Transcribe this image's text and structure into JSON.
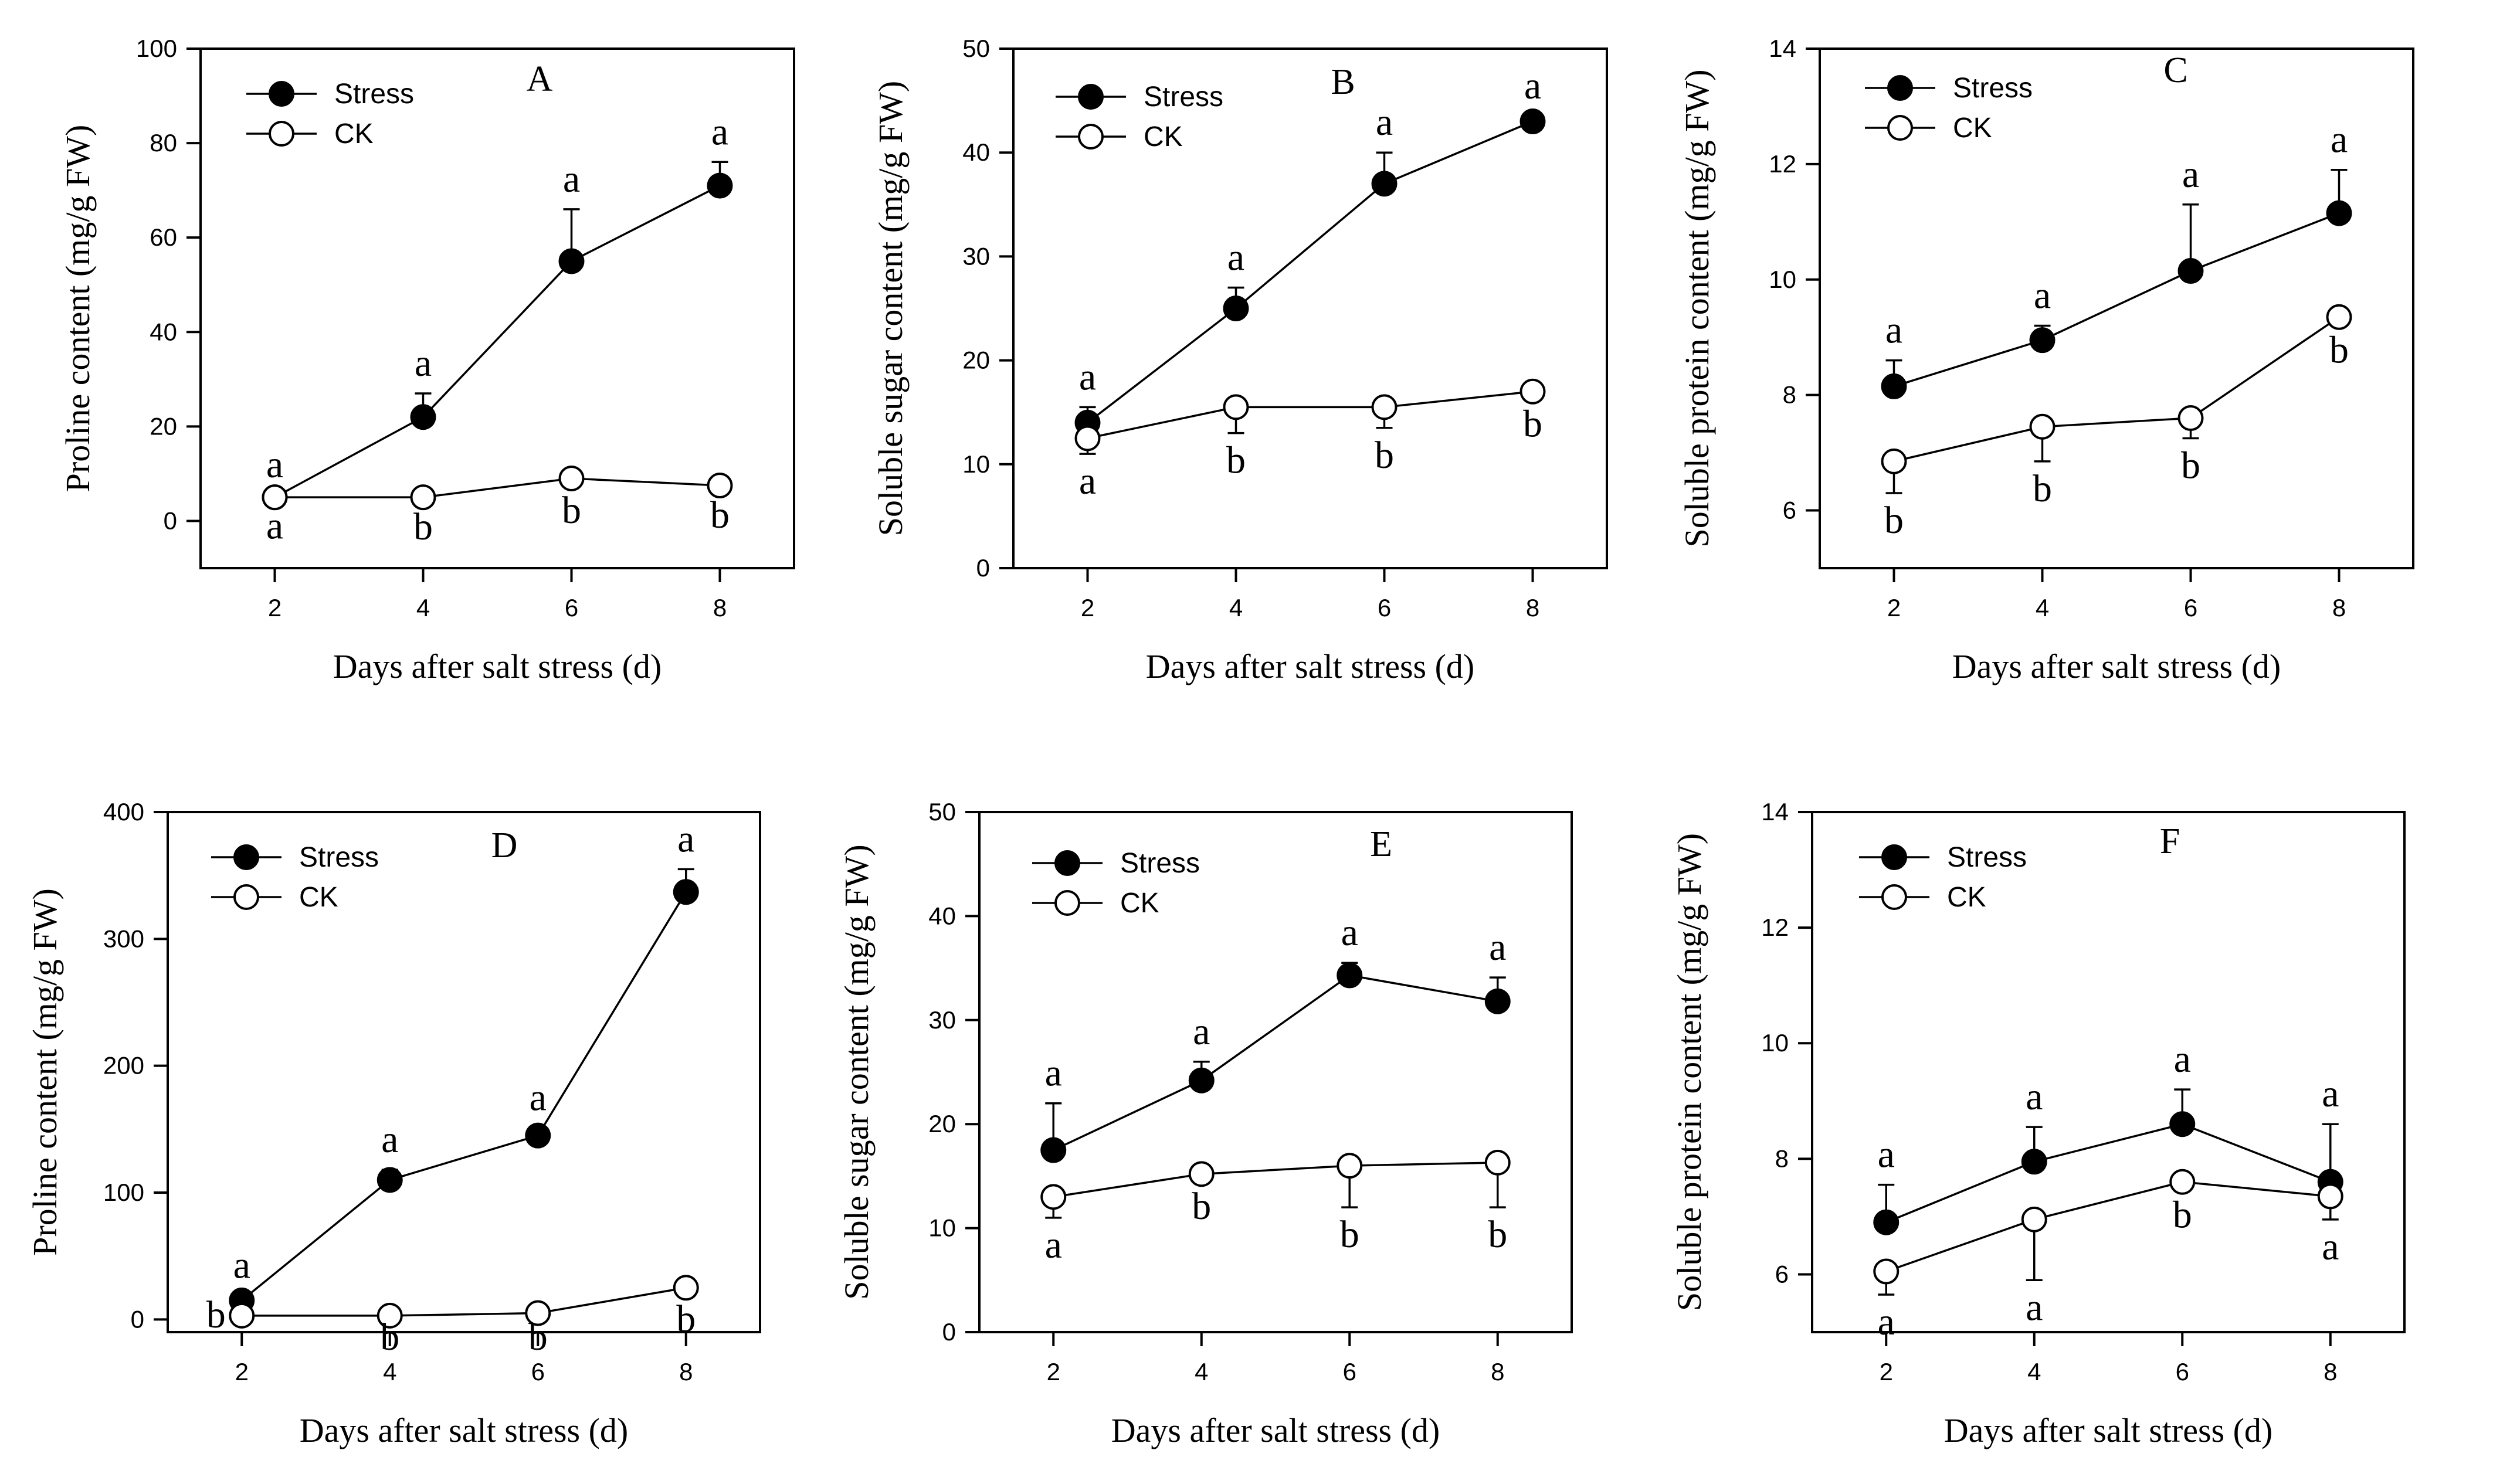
{
  "figure": {
    "xlabel": "Days after salt stress (d)",
    "legend": {
      "stress": "Stress",
      "ck": "CK"
    },
    "colors": {
      "stress": "#000000",
      "ck": "#ffffff",
      "axis": "#000000",
      "background": "#ffffff"
    }
  },
  "chart_data": [
    {
      "panel": "A",
      "type": "line",
      "xlabel": "Days after salt stress (d)",
      "ylabel": "Proline content (mg/g FW)",
      "x": [
        2,
        4,
        6,
        8
      ],
      "xlim": [
        1,
        9
      ],
      "ylim": [
        -10,
        100
      ],
      "yticks": [
        0,
        20,
        40,
        60,
        80,
        100
      ],
      "series": [
        {
          "name": "Stress",
          "values": [
            5,
            22,
            55,
            71
          ],
          "errors": [
            0.5,
            5,
            11,
            5
          ],
          "letters": [
            "a",
            "a",
            "a",
            "a"
          ]
        },
        {
          "name": "CK",
          "values": [
            5,
            5,
            9,
            7.5
          ],
          "errors": [
            0.3,
            0.5,
            1,
            0.5
          ],
          "letters": [
            "a",
            "b",
            "b",
            "b"
          ]
        }
      ]
    },
    {
      "panel": "B",
      "type": "line",
      "xlabel": "Days after salt stress (d)",
      "ylabel": "Soluble sugar content (mg/g FW)",
      "x": [
        2,
        4,
        6,
        8
      ],
      "xlim": [
        1,
        9
      ],
      "ylim": [
        0,
        50
      ],
      "yticks": [
        0,
        10,
        20,
        30,
        40,
        50
      ],
      "series": [
        {
          "name": "Stress",
          "values": [
            14,
            25,
            37,
            43
          ],
          "errors": [
            1.5,
            2,
            3,
            0.5
          ],
          "letters": [
            "a",
            "a",
            "a",
            "a"
          ]
        },
        {
          "name": "CK",
          "values": [
            12.5,
            15.5,
            15.5,
            17
          ],
          "errors": [
            1.5,
            2.5,
            2,
            0.5
          ],
          "letters": [
            "a",
            "b",
            "b",
            "b"
          ]
        }
      ]
    },
    {
      "panel": "C",
      "type": "line",
      "xlabel": "Days after salt stress (d)",
      "ylabel": "Soluble protein content  (mg/g FW)",
      "x": [
        2,
        4,
        6,
        8
      ],
      "xlim": [
        1,
        9
      ],
      "ylim": [
        5,
        14
      ],
      "yticks": [
        6,
        8,
        10,
        12,
        14
      ],
      "series": [
        {
          "name": "Stress",
          "values": [
            8.15,
            8.95,
            10.15,
            11.15
          ],
          "errors": [
            0.45,
            0.25,
            1.15,
            0.75
          ],
          "letters": [
            "a",
            "a",
            "a",
            "a"
          ]
        },
        {
          "name": "CK",
          "values": [
            6.85,
            7.45,
            7.6,
            9.35
          ],
          "errors": [
            0.55,
            0.6,
            0.35,
            0.1
          ],
          "letters": [
            "b",
            "b",
            "b",
            "b"
          ]
        }
      ]
    },
    {
      "panel": "D",
      "type": "line",
      "xlabel": "Days after salt stress (d)",
      "ylabel": "Proline content (mg/g FW)",
      "x": [
        2,
        4,
        6,
        8
      ],
      "xlim": [
        1,
        9
      ],
      "ylim": [
        -10,
        400
      ],
      "yticks": [
        0,
        100,
        200,
        300,
        400
      ],
      "series": [
        {
          "name": "Stress",
          "values": [
            15,
            110,
            145,
            337
          ],
          "errors": [
            4,
            8,
            6,
            18
          ],
          "letters": [
            "a",
            "a",
            "a",
            "a"
          ]
        },
        {
          "name": "CK",
          "values": [
            3,
            3,
            5,
            25
          ],
          "errors": [
            1,
            1,
            1,
            3
          ],
          "letters": [
            "b",
            "b",
            "b",
            "b"
          ]
        }
      ]
    },
    {
      "panel": "E",
      "type": "line",
      "xlabel": "Days after salt stress (d)",
      "ylabel": "Soluble sugar content (mg/g FW)",
      "x": [
        2,
        4,
        6,
        8
      ],
      "xlim": [
        1,
        9
      ],
      "ylim": [
        0,
        50
      ],
      "yticks": [
        0,
        10,
        20,
        30,
        40,
        50
      ],
      "series": [
        {
          "name": "Stress",
          "values": [
            17.5,
            24.2,
            34.3,
            31.8
          ],
          "errors": [
            4.5,
            1.8,
            1.2,
            2.3
          ],
          "letters": [
            "a",
            "a",
            "a",
            "a"
          ]
        },
        {
          "name": "CK",
          "values": [
            13,
            15.2,
            16,
            16.3
          ],
          "errors": [
            2,
            0.5,
            4,
            4.3
          ],
          "letters": [
            "a",
            "b",
            "b",
            "b"
          ]
        }
      ]
    },
    {
      "panel": "F",
      "type": "line",
      "xlabel": "Days after salt stress (d)",
      "ylabel": "Soluble protein content  (mg/g FW)",
      "x": [
        2,
        4,
        6,
        8
      ],
      "xlim": [
        1,
        9
      ],
      "ylim": [
        5,
        14
      ],
      "yticks": [
        6,
        8,
        10,
        12,
        14
      ],
      "series": [
        {
          "name": "Stress",
          "values": [
            6.9,
            7.95,
            8.6,
            7.6
          ],
          "errors": [
            0.65,
            0.6,
            0.6,
            1
          ],
          "letters": [
            "a",
            "a",
            "a",
            "a"
          ]
        },
        {
          "name": "CK",
          "values": [
            6.05,
            6.95,
            7.6,
            7.35
          ],
          "errors": [
            0.4,
            1.05,
            0.1,
            0.4
          ],
          "letters": [
            "a",
            "a",
            "b",
            "a"
          ]
        }
      ]
    }
  ]
}
